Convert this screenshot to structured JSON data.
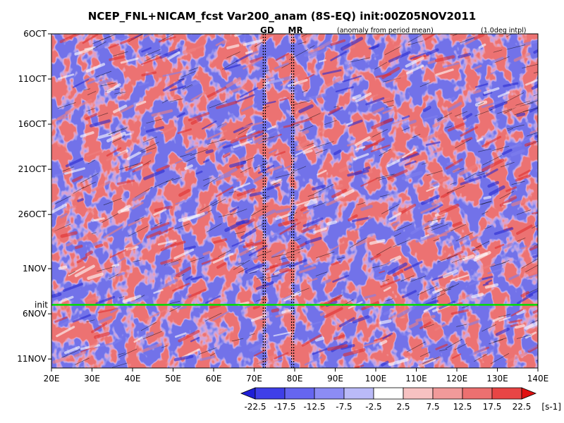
{
  "chart_data": {
    "type": "heatmap",
    "title": "NCEP_FNL+NICAM_fcst Var200_anam (8S-EQ) init:00Z05NOV2011",
    "subtitle_left": "(anomaly from period mean)",
    "subtitle_right": "(1.0deg intpl)",
    "x_axis": {
      "range": [
        20,
        140
      ],
      "ticks": [
        20,
        30,
        40,
        50,
        60,
        70,
        80,
        90,
        100,
        110,
        120,
        130,
        140
      ],
      "tick_labels": [
        "20E",
        "30E",
        "40E",
        "50E",
        "60E",
        "70E",
        "80E",
        "90E",
        "100E",
        "110E",
        "120E",
        "130E",
        "140E"
      ]
    },
    "y_axis": {
      "range": [
        "2011-10-06",
        "2011-11-12"
      ],
      "ticks": [
        "2011-10-06",
        "2011-10-11",
        "2011-10-16",
        "2011-10-21",
        "2011-10-26",
        "2011-11-01",
        "2011-11-06",
        "2011-11-11"
      ],
      "tick_labels": [
        "6OCT",
        "11OCT",
        "16OCT",
        "21OCT",
        "26OCT",
        "1NOV",
        "6NOV",
        "11NOV"
      ],
      "inverted": true
    },
    "markers": [
      {
        "label": "GD",
        "lon": 72.5,
        "color": "#ff0000"
      },
      {
        "label": "MR",
        "lon": 79.5,
        "color": "#ff0000"
      }
    ],
    "init_line": {
      "label": "init",
      "date": "2011-11-05",
      "color": "#00dd00"
    },
    "colorbar": {
      "levels": [
        "-22.5",
        "-17.5",
        "-12.5",
        "-7.5",
        "-2.5",
        "2.5",
        "7.5",
        "12.5",
        "17.5",
        "22.5"
      ],
      "unit": "[s-1]",
      "colors": [
        "#1f1fd6",
        "#3f3fe8",
        "#6565f0",
        "#8c8cf4",
        "#babaf8",
        "#ffffff",
        "#f7c2c2",
        "#f19a9a",
        "#ec7070",
        "#e84545",
        "#e01010"
      ]
    }
  }
}
